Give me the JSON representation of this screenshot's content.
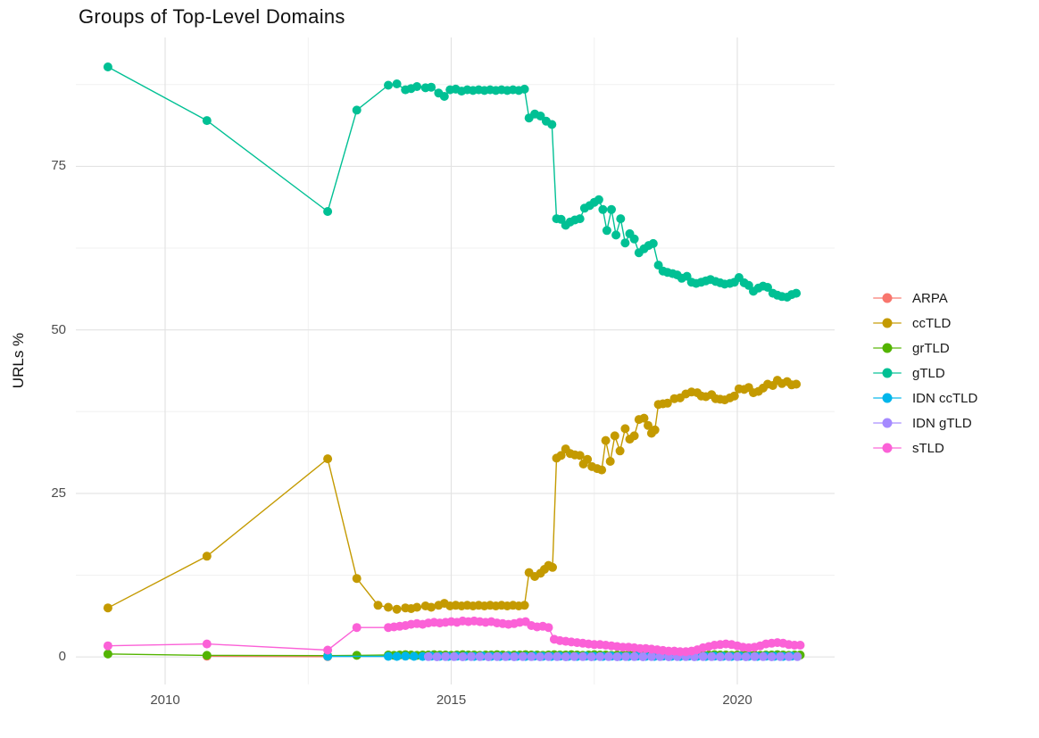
{
  "chart_data": {
    "type": "line",
    "title": "Groups of Top-Level Domains",
    "xlabel": "",
    "ylabel": "URLs %",
    "legend_position": "right",
    "grid": true,
    "background": "#ffffff",
    "major_grid_color": "#e3e3e3",
    "minor_grid_color": "#f0f0f0",
    "tick_label_color": "#4d4d4d",
    "xlim": [
      2008.44,
      2021.7
    ],
    "ylim": [
      -4.2,
      94.7
    ],
    "x_ticks": [
      2010,
      2015,
      2020
    ],
    "x_minor_ticks": [
      2012.5,
      2017.5
    ],
    "y_ticks": [
      0,
      25,
      50,
      75
    ],
    "y_minor_ticks": [
      12.5,
      37.5,
      62.5,
      87.5
    ],
    "series": [
      {
        "name": "ARPA",
        "color": "#F8766D",
        "points": [
          [
            2010.73,
            0.12
          ],
          [
            2012.84,
            0.05
          ]
        ]
      },
      {
        "name": "ccTLD",
        "color": "#C49A00",
        "points": [
          [
            2009.0,
            7.5
          ],
          [
            2010.73,
            15.4
          ],
          [
            2012.84,
            30.3
          ],
          [
            2013.35,
            12.0
          ],
          [
            2013.72,
            7.9
          ],
          [
            2013.9,
            7.6
          ],
          [
            2014.05,
            7.3
          ],
          [
            2014.2,
            7.5
          ],
          [
            2014.3,
            7.4
          ],
          [
            2014.4,
            7.6
          ],
          [
            2014.55,
            7.8
          ],
          [
            2014.65,
            7.6
          ],
          [
            2014.78,
            7.9
          ],
          [
            2014.88,
            8.2
          ],
          [
            2014.98,
            7.8
          ],
          [
            2015.08,
            7.9
          ],
          [
            2015.18,
            7.8
          ],
          [
            2015.28,
            7.9
          ],
          [
            2015.38,
            7.8
          ],
          [
            2015.48,
            7.9
          ],
          [
            2015.58,
            7.8
          ],
          [
            2015.68,
            7.9
          ],
          [
            2015.78,
            7.8
          ],
          [
            2015.88,
            7.9
          ],
          [
            2015.98,
            7.8
          ],
          [
            2016.08,
            7.9
          ],
          [
            2016.18,
            7.8
          ],
          [
            2016.28,
            7.9
          ],
          [
            2016.36,
            12.9
          ],
          [
            2016.46,
            12.3
          ],
          [
            2016.56,
            12.8
          ],
          [
            2016.63,
            13.4
          ],
          [
            2016.7,
            14.0
          ],
          [
            2016.77,
            13.7
          ],
          [
            2016.84,
            30.4
          ],
          [
            2016.92,
            30.8
          ],
          [
            2017.0,
            31.8
          ],
          [
            2017.08,
            31.1
          ],
          [
            2017.16,
            30.9
          ],
          [
            2017.25,
            30.8
          ],
          [
            2017.31,
            29.5
          ],
          [
            2017.38,
            30.2
          ],
          [
            2017.46,
            29.1
          ],
          [
            2017.55,
            28.8
          ],
          [
            2017.63,
            28.6
          ],
          [
            2017.7,
            33.1
          ],
          [
            2017.78,
            29.9
          ],
          [
            2017.86,
            33.8
          ],
          [
            2017.95,
            31.5
          ],
          [
            2018.04,
            34.9
          ],
          [
            2018.12,
            33.3
          ],
          [
            2018.2,
            33.8
          ],
          [
            2018.28,
            36.3
          ],
          [
            2018.37,
            36.5
          ],
          [
            2018.44,
            35.4
          ],
          [
            2018.5,
            34.2
          ],
          [
            2018.56,
            34.7
          ],
          [
            2018.62,
            38.6
          ],
          [
            2018.7,
            38.7
          ],
          [
            2018.78,
            38.8
          ],
          [
            2018.9,
            39.5
          ],
          [
            2019.0,
            39.6
          ],
          [
            2019.1,
            40.2
          ],
          [
            2019.2,
            40.5
          ],
          [
            2019.3,
            40.4
          ],
          [
            2019.37,
            39.9
          ],
          [
            2019.45,
            39.8
          ],
          [
            2019.55,
            40.1
          ],
          [
            2019.62,
            39.5
          ],
          [
            2019.7,
            39.4
          ],
          [
            2019.78,
            39.3
          ],
          [
            2019.87,
            39.6
          ],
          [
            2019.95,
            39.9
          ],
          [
            2020.03,
            41.0
          ],
          [
            2020.12,
            40.9
          ],
          [
            2020.2,
            41.2
          ],
          [
            2020.28,
            40.4
          ],
          [
            2020.37,
            40.6
          ],
          [
            2020.45,
            41.1
          ],
          [
            2020.53,
            41.7
          ],
          [
            2020.62,
            41.5
          ],
          [
            2020.7,
            42.3
          ],
          [
            2020.78,
            41.8
          ],
          [
            2020.87,
            42.1
          ],
          [
            2020.95,
            41.6
          ],
          [
            2021.03,
            41.7
          ]
        ]
      },
      {
        "name": "grTLD",
        "color": "#53B400",
        "points": [
          [
            2009.0,
            0.45
          ],
          [
            2010.73,
            0.25
          ],
          [
            2012.84,
            0.2
          ],
          [
            2013.35,
            0.25
          ]
        ],
        "dense": {
          "x0": 2013.9,
          "dx": 0.1,
          "values": [
            0.3,
            0.25,
            0.3,
            0.35,
            0.3,
            0.25,
            0.3,
            0.3,
            0.35,
            0.3,
            0.3,
            0.25,
            0.3,
            0.35,
            0.3,
            0.3,
            0.25,
            0.3,
            0.3,
            0.35,
            0.3,
            0.25,
            0.3,
            0.3,
            0.35,
            0.3,
            0.3,
            0.25,
            0.3,
            0.35,
            0.3,
            0.3,
            0.35,
            0.3,
            0.25,
            0.3,
            0.35,
            0.3,
            0.3,
            0.25,
            0.3,
            0.3,
            0.35,
            0.3,
            0.25,
            0.3,
            0.3,
            0.35,
            0.3,
            0.3,
            0.25,
            0.3,
            0.35,
            0.3,
            0.25,
            0.3,
            0.3,
            0.35,
            0.3,
            0.3,
            0.25,
            0.3,
            0.35,
            0.3,
            0.3,
            0.25,
            0.3,
            0.3,
            0.35,
            0.3,
            0.25,
            0.3,
            0.3
          ]
        }
      },
      {
        "name": "gTLD",
        "color": "#00C094",
        "points": [
          [
            2009.0,
            90.2
          ],
          [
            2010.73,
            82.0
          ],
          [
            2012.84,
            68.1
          ],
          [
            2013.35,
            83.6
          ],
          [
            2013.9,
            87.4
          ],
          [
            2014.05,
            87.6
          ],
          [
            2014.2,
            86.7
          ],
          [
            2014.3,
            86.9
          ],
          [
            2014.4,
            87.2
          ],
          [
            2014.55,
            87.0
          ],
          [
            2014.65,
            87.1
          ],
          [
            2014.78,
            86.2
          ],
          [
            2014.88,
            85.7
          ],
          [
            2014.98,
            86.7
          ],
          [
            2015.08,
            86.8
          ],
          [
            2015.18,
            86.5
          ],
          [
            2015.28,
            86.7
          ],
          [
            2015.38,
            86.6
          ],
          [
            2015.48,
            86.7
          ],
          [
            2015.58,
            86.6
          ],
          [
            2015.68,
            86.7
          ],
          [
            2015.78,
            86.6
          ],
          [
            2015.88,
            86.7
          ],
          [
            2015.98,
            86.6
          ],
          [
            2016.08,
            86.7
          ],
          [
            2016.18,
            86.6
          ],
          [
            2016.28,
            86.8
          ],
          [
            2016.36,
            82.4
          ],
          [
            2016.46,
            83.0
          ],
          [
            2016.56,
            82.7
          ],
          [
            2016.66,
            81.9
          ],
          [
            2016.76,
            81.4
          ],
          [
            2016.84,
            67.0
          ],
          [
            2016.92,
            66.9
          ],
          [
            2017.0,
            66.0
          ],
          [
            2017.08,
            66.5
          ],
          [
            2017.16,
            66.8
          ],
          [
            2017.25,
            67.0
          ],
          [
            2017.33,
            68.6
          ],
          [
            2017.42,
            69.0
          ],
          [
            2017.5,
            69.5
          ],
          [
            2017.58,
            69.9
          ],
          [
            2017.65,
            68.4
          ],
          [
            2017.72,
            65.2
          ],
          [
            2017.8,
            68.4
          ],
          [
            2017.88,
            64.5
          ],
          [
            2017.96,
            67.0
          ],
          [
            2018.04,
            63.3
          ],
          [
            2018.12,
            64.7
          ],
          [
            2018.2,
            63.9
          ],
          [
            2018.28,
            61.8
          ],
          [
            2018.37,
            62.4
          ],
          [
            2018.45,
            62.9
          ],
          [
            2018.53,
            63.2
          ],
          [
            2018.62,
            59.9
          ],
          [
            2018.7,
            59.0
          ],
          [
            2018.78,
            58.8
          ],
          [
            2018.87,
            58.6
          ],
          [
            2018.95,
            58.4
          ],
          [
            2019.03,
            57.9
          ],
          [
            2019.12,
            58.2
          ],
          [
            2019.2,
            57.3
          ],
          [
            2019.28,
            57.1
          ],
          [
            2019.37,
            57.3
          ],
          [
            2019.45,
            57.5
          ],
          [
            2019.53,
            57.7
          ],
          [
            2019.62,
            57.4
          ],
          [
            2019.7,
            57.2
          ],
          [
            2019.78,
            57.0
          ],
          [
            2019.87,
            57.1
          ],
          [
            2019.95,
            57.3
          ],
          [
            2020.03,
            58.0
          ],
          [
            2020.12,
            57.2
          ],
          [
            2020.2,
            56.8
          ],
          [
            2020.28,
            55.9
          ],
          [
            2020.37,
            56.4
          ],
          [
            2020.45,
            56.7
          ],
          [
            2020.53,
            56.5
          ],
          [
            2020.62,
            55.6
          ],
          [
            2020.7,
            55.3
          ],
          [
            2020.78,
            55.1
          ],
          [
            2020.87,
            55.0
          ],
          [
            2020.95,
            55.4
          ],
          [
            2021.03,
            55.6
          ]
        ]
      },
      {
        "name": "IDN ccTLD",
        "color": "#00B6EB",
        "points": [
          [
            2012.84,
            0.1
          ]
        ],
        "dense": {
          "x0": 2013.9,
          "dx": 0.15,
          "values": [
            0.1,
            0.08,
            0.12,
            0.1,
            0.08,
            0.12,
            0.1,
            0.08,
            0.12,
            0.1,
            0.08,
            0.12,
            0.1,
            0.08,
            0.12,
            0.1,
            0.08,
            0.12,
            0.1,
            0.08,
            0.12,
            0.1,
            0.08,
            0.12,
            0.1,
            0.08,
            0.12,
            0.1,
            0.08,
            0.12,
            0.1,
            0.08,
            0.12,
            0.1,
            0.08,
            0.12,
            0.1,
            0.08,
            0.12,
            0.1,
            0.08,
            0.12,
            0.1,
            0.08,
            0.12,
            0.1,
            0.08,
            0.12
          ]
        }
      },
      {
        "name": "IDN gTLD",
        "color": "#A58AFF",
        "points": [],
        "dense": {
          "x0": 2014.6,
          "dx": 0.15,
          "values": [
            0.05,
            0.03,
            0.07,
            0.05,
            0.03,
            0.07,
            0.05,
            0.03,
            0.07,
            0.05,
            0.03,
            0.07,
            0.05,
            0.03,
            0.07,
            0.05,
            0.03,
            0.07,
            0.05,
            0.03,
            0.07,
            0.05,
            0.03,
            0.07,
            0.05,
            0.03,
            0.07,
            0.05,
            0.03,
            0.07,
            0.05,
            0.03,
            0.07,
            0.05,
            0.03,
            0.07,
            0.05,
            0.03,
            0.07,
            0.05,
            0.03,
            0.07,
            0.05,
            0.05
          ]
        }
      },
      {
        "name": "sTLD",
        "color": "#FB61D7",
        "points": [
          [
            2009.0,
            1.7
          ],
          [
            2010.73,
            2.0
          ],
          [
            2012.84,
            1.05
          ],
          [
            2013.35,
            4.5
          ]
        ],
        "dense": {
          "x0": 2013.9,
          "dx": 0.1,
          "values": [
            4.5,
            4.6,
            4.7,
            4.8,
            5.0,
            5.1,
            5.0,
            5.2,
            5.3,
            5.2,
            5.3,
            5.4,
            5.3,
            5.5,
            5.4,
            5.5,
            5.4,
            5.3,
            5.4,
            5.2,
            5.1,
            5.0,
            5.1,
            5.3,
            5.4,
            4.8,
            4.6,
            4.7,
            4.5,
            2.7,
            2.5,
            2.4,
            2.3,
            2.2,
            2.1,
            2.0,
            1.9,
            1.9,
            1.8,
            1.7,
            1.6,
            1.5,
            1.5,
            1.4,
            1.3,
            1.3,
            1.2,
            1.1,
            1.0,
            0.9,
            0.9,
            0.8,
            0.8,
            0.9,
            1.1,
            1.4,
            1.6,
            1.8,
            1.9,
            2.0,
            1.9,
            1.7,
            1.5,
            1.4,
            1.5,
            1.7,
            2.0,
            2.1,
            2.2,
            2.1,
            1.9,
            1.8,
            1.8
          ]
        }
      }
    ]
  }
}
